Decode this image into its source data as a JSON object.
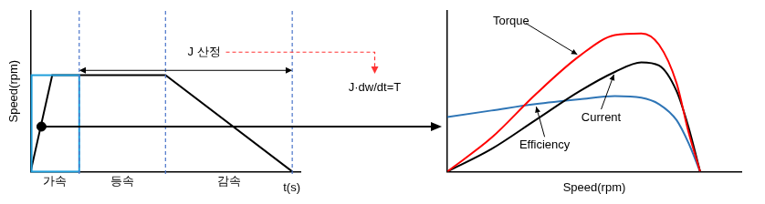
{
  "chart_data": [
    {
      "type": "line",
      "x_label": "t(s)",
      "y_label": "Speed(rpm)",
      "x": [
        0,
        8,
        50,
        97
      ],
      "values": [
        0,
        60,
        60,
        0
      ],
      "color": "#000000",
      "xlim": [
        0,
        100
      ],
      "ylim": [
        0,
        100
      ],
      "grid": false,
      "tick_labels": false,
      "phases": [
        {
          "label": "가속",
          "from": 0,
          "to": 18
        },
        {
          "label": "등속",
          "from": 18,
          "to": 50
        },
        {
          "label": "감속",
          "from": 50,
          "to": 97
        }
      ],
      "span_annotation": {
        "text": "J 산정",
        "from": 18,
        "to": 97,
        "y": 63
      },
      "highlight_point": {
        "x": 4,
        "y": 28
      },
      "equation": "J·dw/dt=T"
    },
    {
      "type": "line",
      "x_label": "Speed(rpm)",
      "x": [
        0,
        15,
        30,
        45,
        57,
        66,
        72,
        78,
        82,
        86
      ],
      "series": [
        {
          "name": "Torque",
          "color": "#ff0000",
          "values": [
            0,
            21,
            48,
            72,
            85,
            86,
            79,
            55,
            25,
            0
          ]
        },
        {
          "name": "Current",
          "color": "#000000",
          "values": [
            0,
            14,
            32,
            50,
            62,
            68,
            66,
            50,
            28,
            0
          ]
        },
        {
          "name": "Efficiency",
          "color": "#2e75b6",
          "values": [
            34,
            38,
            42,
            45,
            47,
            46,
            42,
            32,
            18,
            0
          ]
        }
      ],
      "xlim": [
        0,
        100
      ],
      "ylim": [
        0,
        100
      ],
      "grid": false,
      "tick_labels": false
    }
  ]
}
